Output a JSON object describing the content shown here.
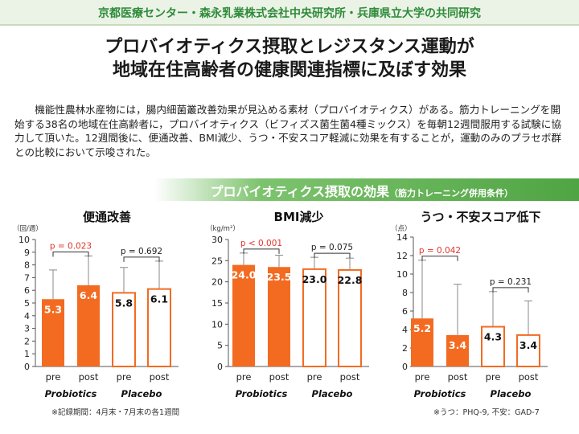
{
  "header": {
    "org": "京都医療センター・森永乳業株式会社中央研究所・兵庫県立大学の共同研究",
    "title_line1": "プロバイオティクス摂取とレジスタンス運動が",
    "title_line2": "地域在住高齢者の健康関連指標に及ぼす効果"
  },
  "body": {
    "paragraph": "機能性農林水産物には，腸内細菌叢改善効果が見込める素材（プロバイオティクス）がある。筋力トレーニングを開始する38名の地域在住高齢者に，プロバイオティクス（ビフィズス菌生菌4種ミックス）を毎朝12週間服用する試験に協力して頂いた。12週間後に、便通改善、BMI減少、うつ・不安スコア軽減に効果を有することが，運動のみのプラセボ群との比較において示唆された。"
  },
  "banner": {
    "main": "プロバイオティクス摂取の効果",
    "sub": "（筋力トレーニング併用条件）"
  },
  "colors": {
    "accent": "#f36b21",
    "error_bar": "#888888",
    "p_sig": "#e0352b",
    "p_ns": "#222222"
  },
  "chart_data": [
    {
      "type": "bar",
      "title": "便通改善",
      "ylabel": "（回/週）",
      "ylim": [
        0,
        10
      ],
      "ytick_step": 1,
      "categories": [
        "pre",
        "post",
        "pre",
        "post"
      ],
      "groups": [
        "Probiotics",
        "Placebo"
      ],
      "values": [
        5.3,
        6.4,
        5.8,
        6.1
      ],
      "value_labels": [
        "5.3",
        "6.4",
        "5.8",
        "6.1"
      ],
      "error_upper": [
        7.6,
        8.7,
        7.8,
        8.3
      ],
      "filled": [
        true,
        true,
        false,
        false
      ],
      "p_values": [
        {
          "label": "p = 0.023",
          "significant": true
        },
        {
          "label": "p = 0.692",
          "significant": false
        }
      ],
      "ticks": [
        "0",
        "1",
        "2",
        "3",
        "4",
        "5",
        "6",
        "7",
        "8",
        "9",
        "10"
      ]
    },
    {
      "type": "bar",
      "title": "BMI減少",
      "ylabel": "（kg/m²）",
      "ylim": [
        0,
        30
      ],
      "ytick_step": 5,
      "categories": [
        "pre",
        "post",
        "pre",
        "post"
      ],
      "groups": [
        "Probiotics",
        "Placebo"
      ],
      "values": [
        24.0,
        23.5,
        23.0,
        22.8
      ],
      "value_labels": [
        "24.0",
        "23.5",
        "23.0",
        "22.8"
      ],
      "error_upper": [
        26.8,
        26.3,
        25.8,
        25.6
      ],
      "filled": [
        true,
        true,
        false,
        false
      ],
      "p_values": [
        {
          "label": "p < 0.001",
          "significant": true
        },
        {
          "label": "p = 0.075",
          "significant": false
        }
      ],
      "ticks": [
        "0",
        "5",
        "10",
        "15",
        "20",
        "25",
        "30"
      ]
    },
    {
      "type": "bar",
      "title": "うつ・不安スコア低下",
      "ylabel": "（点）",
      "ylim": [
        0,
        14
      ],
      "ytick_step": 2,
      "categories": [
        "pre",
        "post",
        "pre",
        "post"
      ],
      "groups": [
        "Probiotics",
        "Placebo"
      ],
      "values": [
        5.2,
        3.4,
        4.3,
        3.4
      ],
      "value_labels": [
        "5.2",
        "3.4",
        "4.3",
        "3.4"
      ],
      "error_upper": [
        11.5,
        8.9,
        8.1,
        7.1
      ],
      "filled": [
        true,
        true,
        false,
        false
      ],
      "p_values": [
        {
          "label": "p = 0.042",
          "significant": true
        },
        {
          "label": "p = 0.231",
          "significant": false
        }
      ],
      "ticks": [
        "0",
        "2",
        "4",
        "6",
        "8",
        "10",
        "12",
        "14"
      ]
    }
  ],
  "notes": {
    "left": "※記録期間：4月末・7月末の各1週間",
    "right": "※うつ：PHQ-9, 不安：GAD-7"
  }
}
